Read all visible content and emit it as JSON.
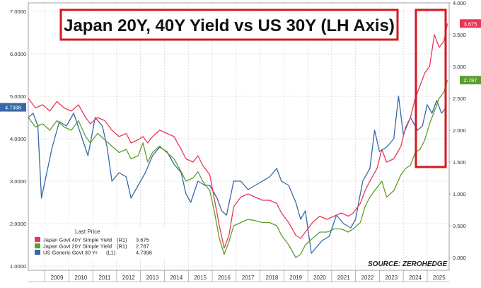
{
  "chart_data": {
    "type": "line",
    "title": "Japan 20Y, 40Y Yield vs US 30Y (LH Axis)",
    "source": "SOURCE: ZEROHEDGE",
    "x_ticks": [
      "2009",
      "2010",
      "2011",
      "2012",
      "2013",
      "2014",
      "2015",
      "2016",
      "2017",
      "2018",
      "2019",
      "2020",
      "2021",
      "2022",
      "2023",
      "2024",
      "2025"
    ],
    "xlim": [
      2008.3,
      2025.92
    ],
    "left_axis": {
      "ylim": [
        0.9,
        7.2
      ],
      "ticks": [
        "1.0000",
        "2.0000",
        "3.0000",
        "4.0000",
        "5.0000",
        "6.0000",
        "7.0000"
      ]
    },
    "right_axis": {
      "ylim": [
        -0.2,
        4.0
      ],
      "ticks": [
        "0.000",
        "0.500",
        "1.000",
        "1.500",
        "2.000",
        "2.500",
        "3.000",
        "3.500",
        "4.000"
      ]
    },
    "legend": {
      "header": "Last Price",
      "placement": "bottom-left",
      "entries": [
        {
          "label": "Japan Govt 40Y Simple Yield",
          "axis": "(R1)",
          "value": "3.675",
          "color": "#e8385a"
        },
        {
          "label": "Japan Govt 20Y Simple Yield",
          "axis": "(R1)",
          "value": "2.787",
          "color": "#5c9e2c"
        },
        {
          "label": "US Generic Govt 30 Yr",
          "axis": "(L1)",
          "value": "4.7398",
          "color": "#3569a8"
        }
      ]
    },
    "last_value_tags": [
      {
        "series": "US Generic Govt 30 Yr",
        "text": "4.7398",
        "value": 4.7398,
        "axis": "left",
        "color": "#3569a8"
      },
      {
        "series": "Japan Govt 40Y Simple Yield",
        "text": "3.675",
        "value": 3.675,
        "axis": "right",
        "color": "#e8385a"
      },
      {
        "series": "Japan Govt 20Y Simple Yield",
        "text": "2.787",
        "value": 2.787,
        "axis": "right",
        "color": "#5c9e2c"
      }
    ],
    "series": [
      {
        "name": "Japan Govt 40Y Simple Yield",
        "axis": "right",
        "color": "#e8385a",
        "x": [
          2008.3,
          2008.6,
          2008.9,
          2009.2,
          2009.5,
          2009.8,
          2010.1,
          2010.4,
          2010.7,
          2010.9,
          2011.2,
          2011.5,
          2011.8,
          2012.1,
          2012.4,
          2012.6,
          2012.9,
          2013.1,
          2013.3,
          2013.5,
          2013.8,
          2014.1,
          2014.4,
          2014.7,
          2014.9,
          2015.2,
          2015.4,
          2015.6,
          2015.9,
          2016.1,
          2016.3,
          2016.5,
          2016.7,
          2016.9,
          2017.2,
          2017.5,
          2017.8,
          2018.1,
          2018.4,
          2018.7,
          2018.9,
          2019.2,
          2019.5,
          2019.7,
          2019.9,
          2020.2,
          2020.5,
          2020.8,
          2021.1,
          2021.4,
          2021.7,
          2021.9,
          2022.2,
          2022.4,
          2022.6,
          2022.9,
          2023.1,
          2023.3,
          2023.6,
          2023.9,
          2024.1,
          2024.3,
          2024.5,
          2024.7,
          2024.9,
          2025.1,
          2025.3,
          2025.5,
          2025.7,
          2025.85
        ],
        "y": [
          2.5,
          2.35,
          2.4,
          2.3,
          2.45,
          2.35,
          2.3,
          2.4,
          2.2,
          2.1,
          2.2,
          2.15,
          2.0,
          1.9,
          1.95,
          1.8,
          1.85,
          1.9,
          1.8,
          1.9,
          2.0,
          1.95,
          1.9,
          1.7,
          1.55,
          1.5,
          1.6,
          1.45,
          1.3,
          0.9,
          0.5,
          0.15,
          0.35,
          0.8,
          0.95,
          1.0,
          0.95,
          0.9,
          0.9,
          0.85,
          0.7,
          0.55,
          0.35,
          0.3,
          0.4,
          0.55,
          0.65,
          0.6,
          0.65,
          0.7,
          0.65,
          0.7,
          0.85,
          1.05,
          1.2,
          1.4,
          1.7,
          1.5,
          1.55,
          1.75,
          2.05,
          2.2,
          2.5,
          2.7,
          2.9,
          3.0,
          3.5,
          3.3,
          3.4,
          3.675
        ]
      },
      {
        "name": "Japan Govt 20Y Simple Yield",
        "axis": "right",
        "color": "#5c9e2c",
        "x": [
          2008.3,
          2008.6,
          2008.9,
          2009.2,
          2009.5,
          2009.8,
          2010.1,
          2010.4,
          2010.7,
          2010.9,
          2011.2,
          2011.5,
          2011.8,
          2012.1,
          2012.4,
          2012.6,
          2012.9,
          2013.1,
          2013.3,
          2013.5,
          2013.8,
          2014.1,
          2014.4,
          2014.7,
          2014.9,
          2015.2,
          2015.4,
          2015.6,
          2015.9,
          2016.1,
          2016.3,
          2016.5,
          2016.7,
          2016.9,
          2017.2,
          2017.5,
          2017.8,
          2018.1,
          2018.4,
          2018.7,
          2018.9,
          2019.2,
          2019.5,
          2019.7,
          2019.9,
          2020.2,
          2020.5,
          2020.8,
          2021.1,
          2021.4,
          2021.7,
          2021.9,
          2022.2,
          2022.4,
          2022.6,
          2022.9,
          2023.1,
          2023.3,
          2023.6,
          2023.9,
          2024.1,
          2024.3,
          2024.5,
          2024.7,
          2024.9,
          2025.1,
          2025.3,
          2025.5,
          2025.7,
          2025.85
        ],
        "y": [
          2.2,
          2.05,
          2.1,
          2.0,
          2.15,
          2.05,
          2.0,
          2.15,
          1.9,
          1.8,
          1.95,
          1.85,
          1.75,
          1.65,
          1.7,
          1.55,
          1.6,
          1.8,
          1.5,
          1.65,
          1.75,
          1.65,
          1.55,
          1.35,
          1.2,
          1.25,
          1.35,
          1.2,
          1.05,
          0.7,
          0.3,
          0.05,
          0.25,
          0.5,
          0.55,
          0.6,
          0.58,
          0.55,
          0.55,
          0.5,
          0.35,
          0.2,
          0.0,
          0.05,
          0.2,
          0.3,
          0.4,
          0.4,
          0.45,
          0.45,
          0.4,
          0.45,
          0.55,
          0.8,
          0.95,
          1.1,
          1.2,
          0.95,
          1.05,
          1.3,
          1.4,
          1.45,
          1.65,
          1.7,
          1.85,
          2.1,
          2.3,
          2.5,
          2.6,
          2.787
        ]
      },
      {
        "name": "US Generic Govt 30 Yr",
        "axis": "left",
        "color": "#3569a8",
        "x": [
          2008.3,
          2008.5,
          2008.7,
          2008.85,
          2009.0,
          2009.3,
          2009.6,
          2009.9,
          2010.2,
          2010.5,
          2010.8,
          2011.1,
          2011.4,
          2011.6,
          2011.8,
          2012.1,
          2012.4,
          2012.6,
          2012.9,
          2013.2,
          2013.5,
          2013.8,
          2014.1,
          2014.4,
          2014.7,
          2014.9,
          2015.1,
          2015.4,
          2015.7,
          2015.9,
          2016.2,
          2016.4,
          2016.6,
          2016.9,
          2017.2,
          2017.5,
          2017.8,
          2018.1,
          2018.4,
          2018.7,
          2018.9,
          2019.2,
          2019.5,
          2019.7,
          2019.9,
          2020.15,
          2020.3,
          2020.6,
          2020.9,
          2021.2,
          2021.5,
          2021.8,
          2022.0,
          2022.3,
          2022.6,
          2022.8,
          2023.0,
          2023.3,
          2023.6,
          2023.8,
          2024.0,
          2024.3,
          2024.6,
          2024.8,
          2025.0,
          2025.2,
          2025.4,
          2025.6,
          2025.8
        ],
        "y": [
          4.5,
          4.6,
          4.3,
          2.6,
          3.0,
          3.8,
          4.4,
          4.3,
          4.6,
          4.1,
          3.6,
          4.5,
          4.3,
          3.8,
          3.0,
          3.2,
          3.1,
          2.6,
          2.9,
          3.2,
          3.6,
          3.8,
          3.7,
          3.4,
          3.2,
          2.7,
          2.5,
          3.0,
          2.9,
          2.9,
          2.6,
          2.3,
          2.2,
          3.0,
          3.0,
          2.8,
          2.9,
          3.0,
          3.1,
          3.3,
          3.0,
          2.9,
          2.5,
          2.1,
          2.3,
          1.3,
          1.4,
          1.6,
          1.7,
          2.2,
          2.0,
          1.9,
          2.1,
          3.0,
          3.3,
          4.2,
          3.7,
          3.8,
          4.0,
          5.0,
          4.1,
          4.5,
          4.2,
          4.3,
          4.8,
          4.6,
          4.9,
          4.6,
          4.7398
        ]
      }
    ]
  }
}
